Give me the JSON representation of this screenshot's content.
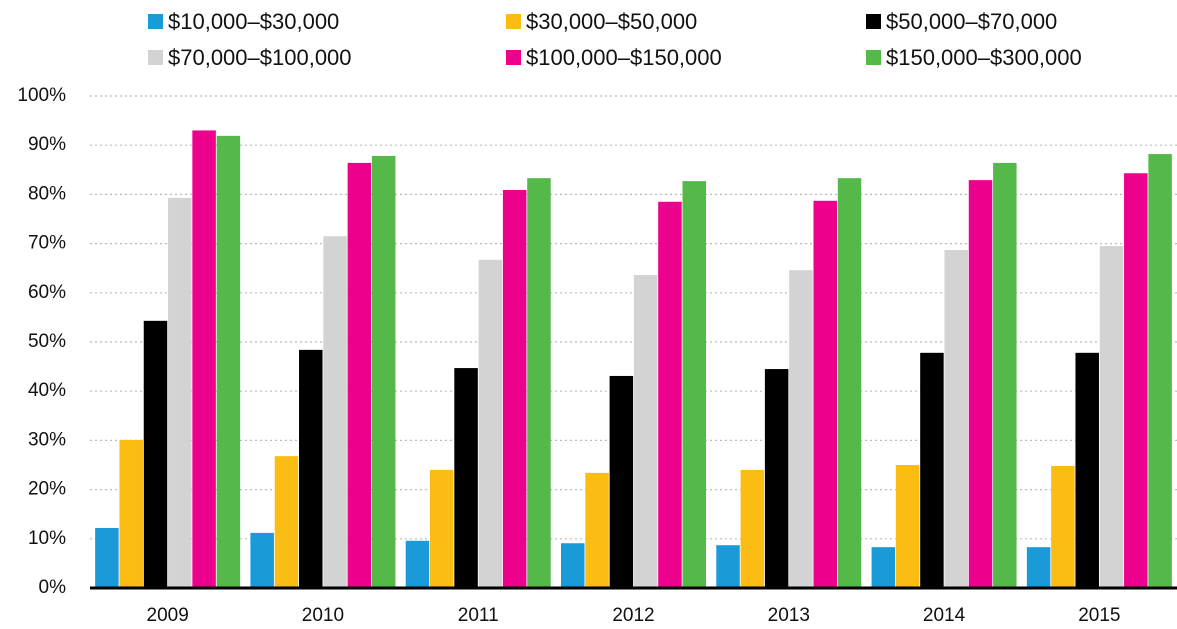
{
  "chart_data": {
    "type": "bar",
    "categories": [
      "2009",
      "2010",
      "2011",
      "2012",
      "2013",
      "2014",
      "2015"
    ],
    "series": [
      {
        "name": "$10,000–$30,000",
        "color": "#1a9ad6",
        "values": [
          12.2,
          11.2,
          9.6,
          9.1,
          8.7,
          8.3,
          8.3
        ]
      },
      {
        "name": "$30,000–$50,000",
        "color": "#fbbc14",
        "values": [
          30.1,
          26.8,
          24.0,
          23.4,
          24.0,
          25.0,
          24.8
        ]
      },
      {
        "name": "$50,000–$70,000",
        "color": "#000000",
        "values": [
          54.3,
          48.4,
          44.7,
          43.1,
          44.5,
          47.8,
          47.8
        ]
      },
      {
        "name": "$70,000–$100,000",
        "color": "#d3d3d3",
        "values": [
          79.3,
          71.5,
          66.7,
          63.6,
          64.6,
          68.7,
          69.5
        ]
      },
      {
        "name": "$100,000–$150,000",
        "color": "#ec008c",
        "values": [
          93.0,
          86.4,
          80.9,
          78.5,
          78.7,
          82.9,
          84.3
        ]
      },
      {
        "name": "$150,000–$300,000",
        "color": "#55b949",
        "values": [
          91.9,
          87.8,
          83.3,
          82.7,
          83.3,
          86.4,
          88.2
        ]
      }
    ],
    "ylim": [
      0,
      100
    ],
    "yticks": [
      {
        "value": 0,
        "label": "0%"
      },
      {
        "value": 10,
        "label": "10%"
      },
      {
        "value": 20,
        "label": "20%"
      },
      {
        "value": 30,
        "label": "30%"
      },
      {
        "value": 40,
        "label": "40%"
      },
      {
        "value": 50,
        "label": "50%"
      },
      {
        "value": 60,
        "label": "60%"
      },
      {
        "value": 70,
        "label": "70%"
      },
      {
        "value": 80,
        "label": "80%"
      },
      {
        "value": 90,
        "label": "90%"
      },
      {
        "value": 100,
        "label": "100%"
      }
    ],
    "grid": true,
    "legend": "top"
  }
}
